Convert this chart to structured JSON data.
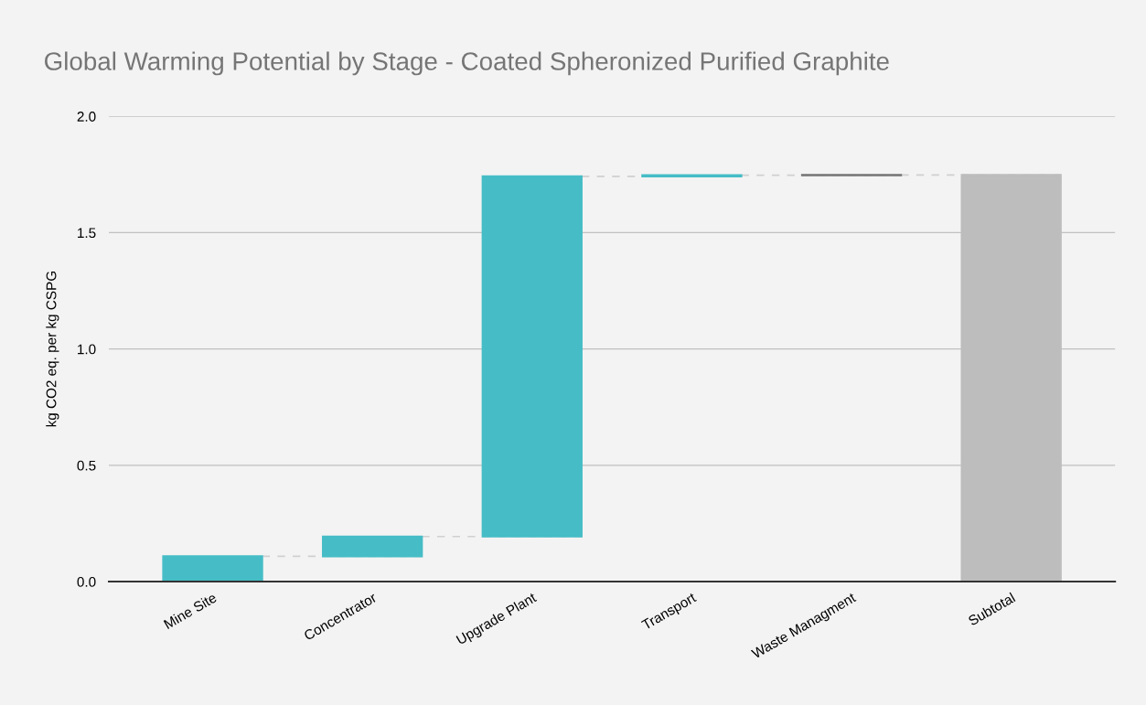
{
  "chart_data": {
    "type": "bar",
    "title": "Global Warming Potential by Stage - Coated Spheronized Purified Graphite",
    "ylabel": "kg CO2 eq. per kg CSPG",
    "categories": [
      "Mine Site",
      "Concentrator",
      "Upgrade Plant",
      "Transport",
      "Waste Managment",
      "Subtotal"
    ],
    "values": [
      0.109,
      0.085,
      1.548,
      0.005,
      0.001,
      1.748
    ],
    "base": [
      0,
      0.109,
      0.194,
      1.742,
      1.747,
      0
    ],
    "colors": [
      "#46bdc6",
      "#46bdc6",
      "#46bdc6",
      "#46bdc6",
      "#757575",
      "#bdbdbd"
    ],
    "ylim": [
      0,
      2.0
    ],
    "yticks": [
      {
        "value": 0,
        "label": "0.0"
      },
      {
        "value": 0.5,
        "label": "0.5"
      },
      {
        "value": 1.0,
        "label": "1.0"
      },
      {
        "value": 1.5,
        "label": "1.5"
      },
      {
        "value": 2.0,
        "label": "2.0"
      }
    ],
    "grid": "y",
    "legend": false
  }
}
